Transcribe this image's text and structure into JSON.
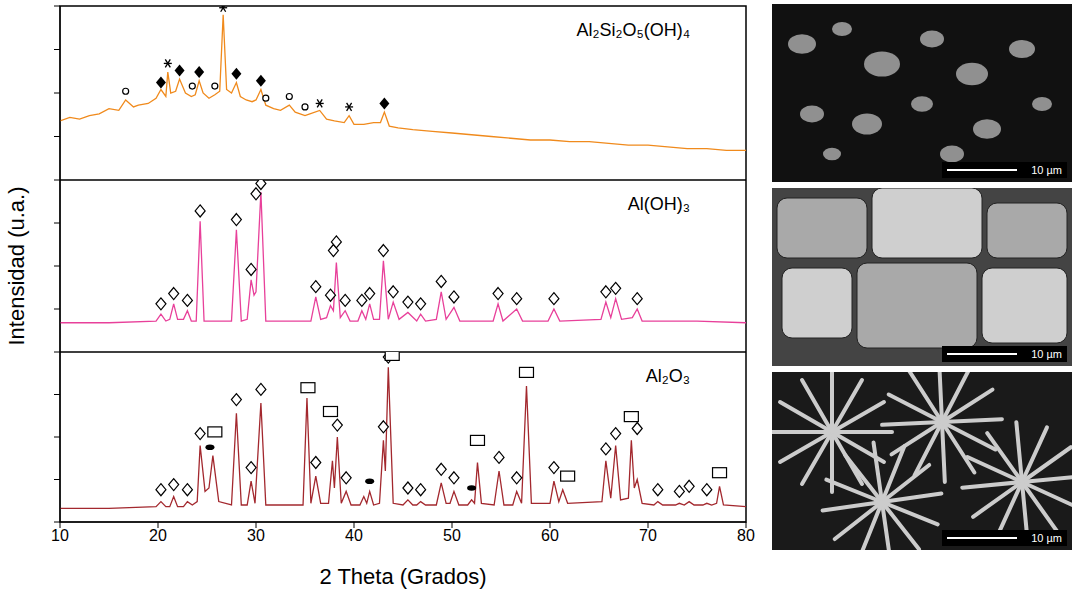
{
  "chart_data": [
    {
      "type": "line",
      "title": "Al₂Si₂O₅(OH)₄",
      "color": "#f08a1c",
      "tick_labels": false,
      "xlim": [
        10,
        80
      ],
      "ylim": [
        0,
        100
      ],
      "yticks": [
        0,
        25,
        50,
        75,
        100
      ],
      "x": [
        10,
        11,
        12,
        13,
        14,
        15,
        16,
        16.7,
        17.5,
        18,
        19,
        19.8,
        20.3,
        20.8,
        21.0,
        21.3,
        21.8,
        22.2,
        22.8,
        23.4,
        23.8,
        24.2,
        24.6,
        25.2,
        25.8,
        26.3,
        26.65,
        27.0,
        27.5,
        28.0,
        28.4,
        29.0,
        29.6,
        30.0,
        30.5,
        31.0,
        31.8,
        32.5,
        33.4,
        34.0,
        35.0,
        35.5,
        36.5,
        37.2,
        38,
        39,
        39.5,
        40,
        41,
        42,
        42.7,
        43.1,
        43.6,
        44.5,
        46,
        48,
        50,
        52,
        54,
        56,
        58,
        60,
        62,
        64,
        66,
        68,
        70,
        72,
        74,
        76,
        78,
        80
      ],
      "values": [
        34,
        36,
        35,
        37,
        38,
        41,
        40,
        46,
        42,
        43,
        44,
        47,
        52,
        48,
        62,
        50,
        51,
        58,
        50,
        48,
        49,
        57,
        50,
        47,
        49,
        51,
        95,
        52,
        50,
        56,
        48,
        46,
        45,
        46,
        52,
        43,
        41,
        40,
        43,
        39,
        37,
        38,
        40,
        35,
        34,
        33,
        37,
        32,
        32,
        33,
        33,
        39,
        31,
        30,
        29,
        28,
        27,
        26,
        25,
        24,
        23,
        23,
        22,
        22,
        21,
        20,
        20,
        19,
        18,
        18,
        17,
        17
      ],
      "annotations": [
        {
          "marker": "asterisk",
          "x": [
            21.0,
            26.65,
            36.5,
            39.5
          ],
          "y": [
            67,
            99,
            44,
            42
          ]
        },
        {
          "marker": "filled_diamond",
          "x": [
            20.3,
            22.2,
            24.2,
            28.0,
            30.5,
            43.1
          ],
          "y": [
            56,
            63,
            62,
            61,
            57,
            44
          ]
        },
        {
          "marker": "open_circle",
          "x": [
            16.7,
            23.5,
            25.8,
            31.0,
            33.4,
            35.0
          ],
          "y": [
            51,
            54,
            54,
            47,
            48,
            42
          ]
        }
      ]
    },
    {
      "type": "line",
      "title": "Al(OH)₃",
      "color": "#e8409a",
      "tick_labels": false,
      "xlim": [
        10,
        80
      ],
      "ylim": [
        0,
        100
      ],
      "yticks": [
        0,
        25,
        50,
        75,
        100
      ],
      "x": [
        10,
        15,
        19.8,
        20.3,
        20.8,
        21.2,
        21.6,
        22.0,
        22.6,
        23.0,
        23.4,
        23.9,
        24.3,
        24.7,
        27.5,
        28.0,
        28.5,
        29.1,
        29.5,
        29.8,
        30.0,
        30.5,
        31.0,
        35.6,
        36.1,
        36.6,
        37.2,
        37.6,
        37.9,
        38.2,
        38.6,
        39.1,
        39.6,
        40.4,
        40.8,
        41.2,
        41.6,
        42.0,
        42.6,
        43.0,
        43.5,
        44.0,
        44.6,
        45.5,
        46.4,
        46.8,
        47.3,
        48.4,
        48.9,
        49.4,
        50.2,
        50.8,
        54.2,
        54.7,
        55.2,
        56.6,
        57.2,
        59.8,
        60.4,
        61.0,
        65.2,
        65.7,
        66.2,
        66.7,
        67.3,
        68.4,
        68.9,
        69.4,
        75,
        80
      ],
      "values": [
        17,
        17,
        18,
        22,
        18,
        19,
        28,
        19,
        19,
        24,
        18,
        18,
        76,
        18,
        18,
        71,
        18,
        19,
        42,
        33,
        35,
        93,
        18,
        18,
        32,
        19,
        20,
        27,
        24,
        52,
        20,
        24,
        18,
        18,
        24,
        19,
        28,
        19,
        19,
        53,
        19,
        29,
        19,
        23,
        18,
        22,
        18,
        19,
        35,
        19,
        26,
        18,
        18,
        28,
        18,
        25,
        18,
        18,
        25,
        18,
        19,
        29,
        20,
        31,
        19,
        20,
        25,
        18,
        18,
        17
      ],
      "annotations": [
        {
          "marker": "open_diamond",
          "x": [
            20.3,
            21.6,
            23.0,
            24.3,
            28.0,
            29.5,
            30.0,
            30.5,
            36.1,
            37.6,
            37.9,
            38.2,
            39.1,
            40.8,
            41.6,
            43.0,
            44.0,
            45.5,
            46.8,
            48.9,
            50.2,
            54.7,
            56.6,
            60.4,
            65.7,
            66.7,
            68.9
          ],
          "y": [
            28,
            34,
            30,
            82,
            77,
            48,
            92,
            98,
            38,
            33,
            59,
            64,
            30,
            30,
            34,
            59,
            35,
            29,
            28,
            41,
            32,
            34,
            31,
            31,
            35,
            37,
            31
          ]
        }
      ]
    },
    {
      "type": "line",
      "title": "Al₂O₃",
      "color": "#a3282e",
      "tick_labels": "x",
      "xlim": [
        10,
        80
      ],
      "xticks": [
        10,
        20,
        30,
        40,
        50,
        60,
        70,
        80
      ],
      "ylim": [
        0,
        100
      ],
      "yticks": [
        0,
        25,
        50,
        75,
        100
      ],
      "x": [
        10,
        15,
        19.8,
        20.3,
        20.8,
        21.2,
        21.6,
        22.0,
        22.6,
        23.0,
        23.5,
        24.0,
        24.3,
        24.8,
        25.2,
        25.6,
        26.2,
        27.5,
        28.0,
        28.5,
        29.1,
        29.5,
        29.9,
        30.5,
        31.0,
        34.8,
        35.2,
        35.6,
        36.1,
        36.6,
        37.4,
        37.8,
        38.0,
        38.3,
        38.7,
        39.2,
        39.7,
        40.6,
        41.0,
        41.3,
        41.6,
        42.0,
        42.6,
        43.0,
        43.2,
        43.5,
        44.0,
        45.0,
        45.5,
        46.0,
        46.4,
        46.8,
        47.3,
        48.4,
        48.9,
        49.4,
        49.8,
        50.2,
        50.7,
        51.6,
        52.0,
        52.3,
        52.6,
        53.0,
        54.3,
        54.8,
        55.3,
        56.2,
        56.6,
        57.1,
        57.6,
        58.1,
        60.0,
        60.4,
        60.9,
        61.3,
        61.8,
        65.3,
        65.7,
        66.2,
        66.7,
        67.2,
        68.0,
        68.3,
        68.6,
        68.9,
        69.4,
        70.6,
        71,
        71.5,
        72.8,
        73.2,
        73.7,
        74.2,
        74.7,
        75.6,
        76,
        76.5,
        77.0,
        77.3,
        77.7,
        80
      ],
      "values": [
        8,
        8,
        9,
        12,
        9,
        9,
        15,
        9,
        9,
        12,
        10,
        12,
        45,
        18,
        20,
        39,
        12,
        10,
        64,
        10,
        10,
        24,
        11,
        70,
        10,
        10,
        73,
        11,
        27,
        11,
        11,
        36,
        20,
        50,
        11,
        18,
        10,
        10,
        15,
        11,
        18,
        10,
        11,
        48,
        30,
        91,
        11,
        10,
        13,
        10,
        10,
        12,
        10,
        10,
        23,
        11,
        11,
        18,
        10,
        10,
        13,
        11,
        35,
        11,
        10,
        30,
        10,
        10,
        18,
        11,
        80,
        11,
        11,
        24,
        12,
        19,
        11,
        12,
        36,
        14,
        45,
        13,
        14,
        48,
        20,
        25,
        11,
        10,
        12,
        10,
        10,
        11,
        10,
        12,
        10,
        10,
        11,
        10,
        11,
        21,
        10,
        9
      ],
      "annotations": [
        {
          "marker": "open_diamond",
          "x": [
            20.3,
            21.6,
            23.0,
            24.3,
            28.0,
            29.5,
            30.5,
            36.1,
            38.3,
            39.2,
            43.0,
            43.5,
            45.5,
            46.8,
            48.9,
            50.2,
            54.8,
            56.6,
            60.4,
            65.7,
            66.7,
            68.9,
            71,
            73.2,
            74.2,
            76
          ],
          "y": [
            19,
            22,
            19,
            52,
            72,
            32,
            78,
            35,
            57,
            26,
            56,
            97,
            20,
            19,
            31,
            26,
            38,
            26,
            32,
            43,
            52,
            55,
            19,
            18,
            21,
            19
          ]
        },
        {
          "marker": "open_square",
          "x": [
            25.8,
            35.3,
            37.6,
            43.9,
            52.6,
            57.6,
            61.8,
            68.3,
            77.3
          ],
          "y": [
            53,
            79,
            65,
            98,
            48,
            88,
            27,
            62,
            29
          ]
        },
        {
          "marker": "filled_ellipse",
          "x": [
            25.3,
            41.6,
            52.0
          ],
          "y": [
            44,
            24,
            20
          ]
        }
      ]
    }
  ],
  "ylabel": "Intensidad (u.a.)",
  "xlabel": "2 Theta (Grados)",
  "images": [
    {
      "scale_bar": "10 µm"
    },
    {
      "scale_bar": "10 µm"
    },
    {
      "scale_bar": "10 µm"
    }
  ]
}
